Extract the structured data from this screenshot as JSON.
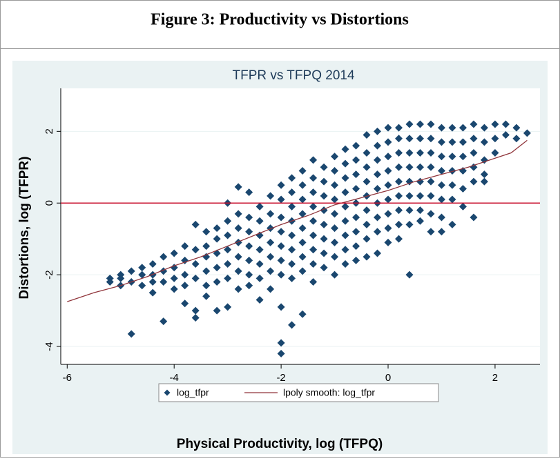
{
  "header": {
    "title": "Figure 3: Productivity vs Distortions"
  },
  "chart_data": {
    "type": "scatter",
    "title": "TFPR vs TFPQ 2014",
    "x_label": "Physical Productivity, log (TFPQ)",
    "y_label": "Distortions, log (TFPR)",
    "xlim": [
      -6.12,
      2.84
    ],
    "ylim": [
      -4.5,
      3.2
    ],
    "xticks": [
      -6,
      -4,
      -2,
      0,
      2
    ],
    "yticks": [
      -4,
      -2,
      0,
      2
    ],
    "grid": true,
    "hline": {
      "value": 0,
      "color": "#c8102e"
    },
    "legend": "bottom",
    "series": [
      {
        "name": "log_tfpr",
        "type": "scatter",
        "color": "#1a476f",
        "x": [
          -5.2,
          -5.2,
          -5.0,
          -5.0,
          -5.0,
          -4.8,
          -4.8,
          -4.8,
          -4.6,
          -4.6,
          -4.6,
          -4.4,
          -4.4,
          -4.4,
          -4.4,
          -4.2,
          -4.2,
          -4.2,
          -4.2,
          -4.0,
          -4.0,
          -4.0,
          -4.0,
          -3.8,
          -3.8,
          -3.8,
          -3.8,
          -3.8,
          -3.6,
          -3.6,
          -3.6,
          -3.6,
          -3.6,
          -3.6,
          -3.4,
          -3.4,
          -3.4,
          -3.4,
          -3.4,
          -3.4,
          -3.2,
          -3.2,
          -3.2,
          -3.2,
          -3.2,
          -3.2,
          -3.0,
          -3.0,
          -3.0,
          -3.0,
          -3.0,
          -3.0,
          -3.0,
          -2.8,
          -2.8,
          -2.8,
          -2.8,
          -2.8,
          -2.8,
          -2.8,
          -2.6,
          -2.6,
          -2.6,
          -2.6,
          -2.6,
          -2.6,
          -2.6,
          -2.4,
          -2.4,
          -2.4,
          -2.4,
          -2.4,
          -2.4,
          -2.4,
          -2.2,
          -2.2,
          -2.2,
          -2.2,
          -2.2,
          -2.2,
          -2.2,
          -2.0,
          -2.0,
          -2.0,
          -2.0,
          -2.0,
          -2.0,
          -2.0,
          -2.0,
          -2.0,
          -2.0,
          -1.8,
          -1.8,
          -1.8,
          -1.8,
          -1.8,
          -1.8,
          -1.8,
          -1.8,
          -1.8,
          -1.6,
          -1.6,
          -1.6,
          -1.6,
          -1.6,
          -1.6,
          -1.6,
          -1.6,
          -1.6,
          -1.4,
          -1.4,
          -1.4,
          -1.4,
          -1.4,
          -1.4,
          -1.4,
          -1.4,
          -1.4,
          -1.2,
          -1.2,
          -1.2,
          -1.2,
          -1.2,
          -1.2,
          -1.2,
          -1.2,
          -1.0,
          -1.0,
          -1.0,
          -1.0,
          -1.0,
          -1.0,
          -1.0,
          -1.0,
          -1.0,
          -0.8,
          -0.8,
          -0.8,
          -0.8,
          -0.8,
          -0.8,
          -0.8,
          -0.8,
          -0.8,
          -0.6,
          -0.6,
          -0.6,
          -0.6,
          -0.6,
          -0.6,
          -0.6,
          -0.6,
          -0.6,
          -0.4,
          -0.4,
          -0.4,
          -0.4,
          -0.4,
          -0.4,
          -0.4,
          -0.4,
          -0.4,
          -0.2,
          -0.2,
          -0.2,
          -0.2,
          -0.2,
          -0.2,
          -0.2,
          -0.2,
          -0.2,
          0.0,
          0.0,
          0.0,
          0.0,
          0.0,
          0.0,
          0.0,
          0.0,
          0.0,
          0.2,
          0.2,
          0.2,
          0.2,
          0.2,
          0.2,
          0.2,
          0.2,
          0.2,
          0.4,
          0.4,
          0.4,
          0.4,
          0.4,
          0.4,
          0.4,
          0.4,
          0.4,
          0.6,
          0.6,
          0.6,
          0.6,
          0.6,
          0.6,
          0.6,
          0.6,
          0.8,
          0.8,
          0.8,
          0.8,
          0.8,
          0.8,
          0.8,
          0.8,
          1.0,
          1.0,
          1.0,
          1.0,
          1.0,
          1.0,
          1.0,
          1.0,
          1.2,
          1.2,
          1.2,
          1.2,
          1.2,
          1.2,
          1.2,
          1.4,
          1.4,
          1.4,
          1.4,
          1.4,
          1.4,
          1.6,
          1.6,
          1.6,
          1.6,
          1.6,
          1.6,
          1.8,
          1.8,
          1.8,
          1.8,
          1.8,
          2.0,
          2.0,
          2.0,
          2.2,
          2.2,
          2.4,
          2.4,
          2.6
        ],
        "values": [
          -2.1,
          -2.2,
          -2.0,
          -2.3,
          -2.1,
          -1.9,
          -2.2,
          -3.65,
          -1.8,
          -2.0,
          -2.3,
          -1.7,
          -2.0,
          -2.2,
          -2.5,
          -1.5,
          -1.9,
          -2.2,
          -3.3,
          -1.4,
          -1.8,
          -2.1,
          -2.4,
          -1.2,
          -1.6,
          -2.0,
          -2.3,
          -2.8,
          -0.6,
          -1.3,
          -1.7,
          -2.1,
          -3.0,
          -3.2,
          -0.8,
          -1.2,
          -1.5,
          -1.9,
          -2.3,
          -2.6,
          -0.7,
          -1.0,
          -1.4,
          -1.8,
          -2.2,
          -3.0,
          0.0,
          -0.5,
          -0.9,
          -1.3,
          -1.7,
          -2.1,
          -2.9,
          0.45,
          -0.3,
          -0.7,
          -1.1,
          -1.5,
          -1.9,
          -2.4,
          0.3,
          -0.4,
          -0.8,
          -1.2,
          -1.6,
          -2.0,
          -2.3,
          -0.1,
          -0.5,
          -0.9,
          -1.3,
          -1.7,
          -2.1,
          -2.7,
          0.2,
          -0.3,
          -0.7,
          -1.1,
          -1.5,
          -1.9,
          -2.4,
          0.5,
          0.1,
          -0.4,
          -0.8,
          -1.2,
          -1.6,
          -2.0,
          -2.9,
          -3.9,
          -4.2,
          0.7,
          0.3,
          -0.1,
          -0.5,
          -0.9,
          -1.3,
          -1.7,
          -2.1,
          -3.4,
          0.9,
          0.5,
          0.1,
          -0.3,
          -0.7,
          -1.1,
          -1.5,
          -1.9,
          -3.1,
          1.2,
          0.7,
          0.3,
          -0.1,
          -0.5,
          -0.9,
          -1.3,
          -1.7,
          -2.2,
          1.0,
          0.6,
          0.2,
          -0.2,
          -0.6,
          -1.0,
          -1.4,
          -1.8,
          1.3,
          0.9,
          0.5,
          0.1,
          -0.3,
          -0.7,
          -1.1,
          -1.5,
          -2.0,
          1.5,
          1.1,
          0.7,
          0.3,
          -0.1,
          -0.5,
          -0.9,
          -1.3,
          -1.7,
          1.6,
          1.2,
          0.8,
          0.4,
          0.0,
          -0.4,
          -0.8,
          -1.2,
          -1.6,
          1.9,
          1.4,
          1.0,
          0.6,
          0.2,
          -0.2,
          -0.6,
          -1.0,
          -1.5,
          2.0,
          1.6,
          1.2,
          0.8,
          0.4,
          0.0,
          -0.4,
          -0.8,
          -1.4,
          2.1,
          1.7,
          1.3,
          0.9,
          0.5,
          0.1,
          -0.3,
          -0.7,
          -1.1,
          2.1,
          1.8,
          1.4,
          1.0,
          0.6,
          0.2,
          -0.2,
          -0.6,
          -1.0,
          2.2,
          1.8,
          1.4,
          1.0,
          0.6,
          0.2,
          -0.2,
          -0.6,
          -2.0,
          2.2,
          1.8,
          1.4,
          1.0,
          0.6,
          0.2,
          -0.2,
          -0.5,
          2.2,
          1.8,
          1.4,
          1.0,
          0.6,
          0.2,
          -0.3,
          -0.8,
          2.1,
          1.7,
          1.3,
          0.9,
          0.5,
          0.1,
          -0.4,
          -0.8,
          2.1,
          1.7,
          1.3,
          0.9,
          0.5,
          0.1,
          -0.6,
          2.1,
          1.7,
          1.3,
          0.9,
          0.4,
          -0.1,
          2.2,
          1.8,
          1.4,
          1.0,
          0.6,
          -0.4,
          2.1,
          1.7,
          1.2,
          0.8,
          0.6,
          2.2,
          1.8,
          1.4,
          2.2,
          1.9,
          2.1,
          1.8,
          1.95
        ]
      },
      {
        "name": "lpoly smooth: log_tfpr",
        "type": "line",
        "color": "#90353b",
        "x": [
          -6,
          -5.5,
          -5,
          -4.5,
          -4,
          -3.5,
          -3,
          -2.5,
          -2,
          -1.5,
          -1,
          -0.5,
          0,
          0.5,
          1,
          1.5,
          2,
          2.3,
          2.6
        ],
        "values": [
          -2.75,
          -2.5,
          -2.3,
          -2.05,
          -1.75,
          -1.5,
          -1.2,
          -0.9,
          -0.6,
          -0.35,
          -0.05,
          0.15,
          0.35,
          0.6,
          0.8,
          1.0,
          1.25,
          1.4,
          1.75
        ]
      }
    ]
  }
}
